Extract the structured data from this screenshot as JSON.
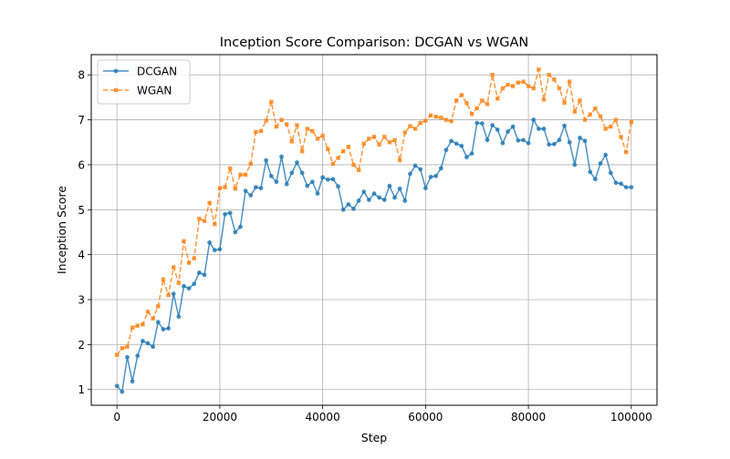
{
  "chart_data": {
    "type": "line",
    "title": "Inception Score Comparison: DCGAN vs WGAN",
    "xlabel": "Step",
    "ylabel": "Inception Score",
    "xlim": [
      -5000,
      105000
    ],
    "ylim": [
      0.65,
      8.45
    ],
    "xticks": [
      0,
      20000,
      40000,
      60000,
      80000,
      100000
    ],
    "xtick_labels": [
      "0",
      "20000",
      "40000",
      "60000",
      "80000",
      "100000"
    ],
    "yticks": [
      1,
      2,
      3,
      4,
      5,
      6,
      7,
      8
    ],
    "ytick_labels": [
      "1",
      "2",
      "3",
      "4",
      "5",
      "6",
      "7",
      "8"
    ],
    "grid": true,
    "legend_position": "top-left",
    "x": [
      0,
      1000,
      2000,
      3000,
      4000,
      5000,
      6000,
      7000,
      8000,
      9000,
      10000,
      11000,
      12000,
      13000,
      14000,
      15000,
      16000,
      17000,
      18000,
      19000,
      20000,
      21000,
      22000,
      23000,
      24000,
      25000,
      26000,
      27000,
      28000,
      29000,
      30000,
      31000,
      32000,
      33000,
      34000,
      35000,
      36000,
      37000,
      38000,
      39000,
      40000,
      41000,
      42000,
      43000,
      44000,
      45000,
      46000,
      47000,
      48000,
      49000,
      50000,
      51000,
      52000,
      53000,
      54000,
      55000,
      56000,
      57000,
      58000,
      59000,
      60000,
      61000,
      62000,
      63000,
      64000,
      65000,
      66000,
      67000,
      68000,
      69000,
      70000,
      71000,
      72000,
      73000,
      74000,
      75000,
      76000,
      77000,
      78000,
      79000,
      80000,
      81000,
      82000,
      83000,
      84000,
      85000,
      86000,
      87000,
      88000,
      89000,
      90000,
      91000,
      92000,
      93000,
      94000,
      95000,
      96000,
      97000,
      98000,
      99000,
      100000
    ],
    "series": [
      {
        "name": "DCGAN",
        "color": "#1f77b4",
        "marker": "circle",
        "linestyle": "solid",
        "values": [
          1.08,
          0.95,
          1.72,
          1.18,
          1.75,
          2.08,
          2.03,
          1.95,
          2.5,
          2.34,
          2.36,
          3.13,
          2.62,
          3.3,
          3.25,
          3.35,
          3.6,
          3.55,
          4.27,
          4.1,
          4.12,
          4.9,
          4.93,
          4.5,
          4.62,
          5.42,
          5.32,
          5.5,
          5.48,
          6.1,
          5.75,
          5.62,
          6.18,
          5.57,
          5.82,
          6.05,
          5.82,
          5.53,
          5.62,
          5.36,
          5.72,
          5.67,
          5.68,
          5.52,
          5.0,
          5.12,
          5.02,
          5.2,
          5.4,
          5.22,
          5.36,
          5.27,
          5.22,
          5.53,
          5.27,
          5.47,
          5.2,
          5.8,
          5.98,
          5.9,
          5.48,
          5.73,
          5.75,
          5.92,
          6.33,
          6.53,
          6.47,
          6.42,
          6.17,
          6.25,
          6.93,
          6.92,
          6.55,
          6.88,
          6.78,
          6.48,
          6.74,
          6.85,
          6.54,
          6.55,
          6.48,
          7.0,
          6.8,
          6.8,
          6.45,
          6.46,
          6.55,
          6.87,
          6.5,
          6.0,
          6.6,
          6.53,
          5.84,
          5.68,
          6.03,
          6.22,
          5.82,
          5.6,
          5.58,
          5.5,
          5.5
        ]
      },
      {
        "name": "WGAN",
        "color": "#ff7f0e",
        "marker": "square",
        "linestyle": "dashed",
        "values": [
          1.77,
          1.92,
          1.95,
          2.38,
          2.42,
          2.45,
          2.73,
          2.58,
          2.85,
          3.45,
          3.1,
          3.72,
          3.37,
          4.3,
          3.82,
          3.92,
          4.8,
          4.75,
          5.15,
          4.68,
          5.48,
          5.5,
          5.92,
          5.47,
          5.78,
          5.78,
          6.02,
          6.73,
          6.75,
          6.98,
          7.4,
          6.85,
          7.0,
          6.9,
          6.52,
          6.88,
          6.3,
          6.8,
          6.75,
          6.58,
          6.65,
          6.35,
          6.02,
          6.15,
          6.3,
          6.4,
          6.0,
          5.88,
          6.47,
          6.58,
          6.62,
          6.45,
          6.62,
          6.5,
          6.55,
          6.1,
          6.72,
          6.86,
          6.8,
          6.93,
          6.98,
          7.1,
          7.07,
          7.05,
          7.0,
          6.97,
          7.43,
          7.55,
          7.37,
          7.13,
          7.26,
          7.43,
          7.35,
          8.0,
          7.47,
          7.7,
          7.78,
          7.75,
          7.83,
          7.85,
          7.75,
          7.7,
          8.12,
          7.45,
          8.0,
          7.9,
          7.7,
          7.38,
          7.85,
          7.18,
          7.43,
          7.0,
          7.12,
          7.25,
          7.08,
          6.8,
          6.85,
          7.0,
          6.62,
          6.28,
          6.95
        ]
      }
    ]
  }
}
